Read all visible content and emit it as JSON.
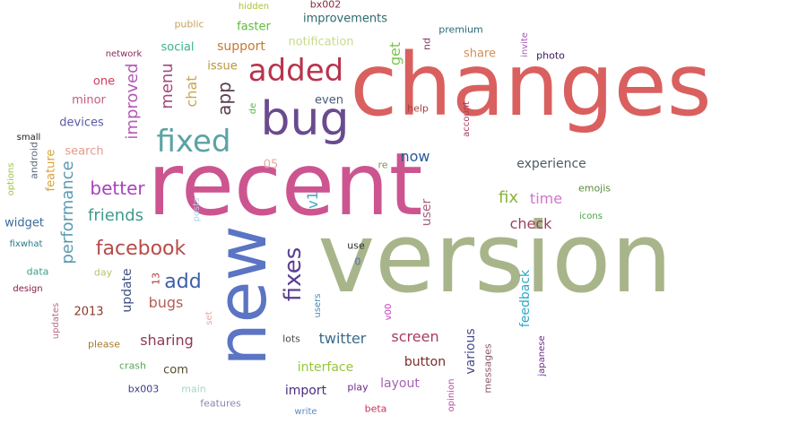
{
  "words": [
    {
      "text": "changes",
      "color": "#d9605f",
      "rotate": 0
    },
    {
      "text": "version",
      "color": "#a8b58a",
      "rotate": 0
    },
    {
      "text": "recent",
      "color": "#cc5590",
      "rotate": 0
    },
    {
      "text": "new",
      "color": "#5b74c3",
      "rotate": -90
    },
    {
      "text": "bug",
      "color": "#6a4b8e",
      "rotate": 0
    },
    {
      "text": "added",
      "color": "#b8334b",
      "rotate": 0
    },
    {
      "text": "fixed",
      "color": "#5aa3a4",
      "rotate": 0
    },
    {
      "text": "fixes",
      "color": "#5b3e91",
      "rotate": -90
    },
    {
      "text": "facebook",
      "color": "#b74a48",
      "rotate": 0
    },
    {
      "text": "add",
      "color": "#3e5ea8",
      "rotate": 0
    },
    {
      "text": "better",
      "color": "#a942c0",
      "rotate": 0
    },
    {
      "text": "friends",
      "color": "#3f9a8e",
      "rotate": 0
    },
    {
      "text": "improved",
      "color": "#b35ab3",
      "rotate": -90
    },
    {
      "text": "performance",
      "color": "#5b9ab0",
      "rotate": -90
    },
    {
      "text": "app",
      "color": "#5a3f4f",
      "rotate": -90
    },
    {
      "text": "menu",
      "color": "#a4497b",
      "rotate": -90
    },
    {
      "text": "chat",
      "color": "#c8a655",
      "rotate": -90
    },
    {
      "text": "now",
      "color": "#2a5a9a",
      "rotate": 0
    },
    {
      "text": "experience",
      "color": "#4c5c62",
      "rotate": 0
    },
    {
      "text": "fix",
      "color": "#88b53b",
      "rotate": 0
    },
    {
      "text": "time",
      "color": "#d472ce",
      "rotate": 0
    },
    {
      "text": "check",
      "color": "#9c3f5e",
      "rotate": 0
    },
    {
      "text": "bugs",
      "color": "#b45f57",
      "rotate": 0
    },
    {
      "text": "sharing",
      "color": "#8c3a55",
      "rotate": 0
    },
    {
      "text": "update",
      "color": "#3f4f84",
      "rotate": -90
    },
    {
      "text": "twitter",
      "color": "#3a6a8a",
      "rotate": 0
    },
    {
      "text": "screen",
      "color": "#a83a62",
      "rotate": 0
    },
    {
      "text": "interface",
      "color": "#98c43a",
      "rotate": 0
    },
    {
      "text": "button",
      "color": "#7a2a2a",
      "rotate": 0
    },
    {
      "text": "layout",
      "color": "#a562b5",
      "rotate": 0
    },
    {
      "text": "import",
      "color": "#4a2e7e",
      "rotate": 0
    },
    {
      "text": "feedback",
      "color": "#2fa8c8",
      "rotate": -90
    },
    {
      "text": "various",
      "color": "#4a4a8a",
      "rotate": -90
    },
    {
      "text": "user",
      "color": "#a86082",
      "rotate": -90
    },
    {
      "text": "improvements",
      "color": "#2e6a6a",
      "rotate": 0
    },
    {
      "text": "faster",
      "color": "#5fba3a",
      "rotate": 0
    },
    {
      "text": "support",
      "color": "#c9782e",
      "rotate": 0
    },
    {
      "text": "notification",
      "color": "#c7dc8a",
      "rotate": 0
    },
    {
      "text": "social",
      "color": "#3ab38a",
      "rotate": 0
    },
    {
      "text": "issue",
      "color": "#b8953a",
      "rotate": 0
    },
    {
      "text": "share",
      "color": "#d19058",
      "rotate": 0
    },
    {
      "text": "premium",
      "color": "#2a6a7a",
      "rotate": 0
    },
    {
      "text": "photo",
      "color": "#3a1a5a",
      "rotate": 0
    },
    {
      "text": "emojis",
      "color": "#5a8a3a",
      "rotate": 0
    },
    {
      "text": "icons",
      "color": "#4aa04a",
      "rotate": 0
    },
    {
      "text": "even",
      "color": "#4a5a7a",
      "rotate": 0
    },
    {
      "text": "one",
      "color": "#cf3e5a",
      "rotate": 0
    },
    {
      "text": "minor",
      "color": "#c45a82",
      "rotate": 0
    },
    {
      "text": "devices",
      "color": "#5a5aa8",
      "rotate": 0
    },
    {
      "text": "search",
      "color": "#e79a8a",
      "rotate": 0
    },
    {
      "text": "feature",
      "color": "#d7a33a",
      "rotate": -90
    },
    {
      "text": "android",
      "color": "#5a6a7a",
      "rotate": -90
    },
    {
      "text": "options",
      "color": "#9ac44a",
      "rotate": -90
    },
    {
      "text": "widget",
      "color": "#3a6a9a",
      "rotate": 0
    },
    {
      "text": "small",
      "color": "#1a1a1a",
      "rotate": 0
    },
    {
      "text": "fixwhat",
      "color": "#2a7a8a",
      "rotate": 0
    },
    {
      "text": "data",
      "color": "#3aa08a",
      "rotate": 0
    },
    {
      "text": "design",
      "color": "#8a1a4a",
      "rotate": 0
    },
    {
      "text": "updates",
      "color": "#b86a8a",
      "rotate": -90
    },
    {
      "text": "day",
      "color": "#b8c46a",
      "rotate": 0
    },
    {
      "text": "2013",
      "color": "#8a3a2a",
      "rotate": 0
    },
    {
      "text": "please",
      "color": "#a87a2a",
      "rotate": 0
    },
    {
      "text": "crash",
      "color": "#5aa85a",
      "rotate": 0
    },
    {
      "text": "com",
      "color": "#5a4a2a",
      "rotate": 0
    },
    {
      "text": "bx003",
      "color": "#3a3a8a",
      "rotate": 0
    },
    {
      "text": "main",
      "color": "#a8d4c8",
      "rotate": 0
    },
    {
      "text": "features",
      "color": "#8a8ab0",
      "rotate": 0
    },
    {
      "text": "write",
      "color": "#5a8ac8",
      "rotate": 0
    },
    {
      "text": "beta",
      "color": "#c8325a",
      "rotate": 0
    },
    {
      "text": "play",
      "color": "#6a2a8a",
      "rotate": 0
    },
    {
      "text": "lots",
      "color": "#4a4a4a",
      "rotate": 0
    },
    {
      "text": "users",
      "color": "#4a8ab8",
      "rotate": -90
    },
    {
      "text": "v00",
      "color": "#c83ab8",
      "rotate": -90
    },
    {
      "text": "opinion",
      "color": "#b84aa8",
      "rotate": -90
    },
    {
      "text": "messages",
      "color": "#8a5a6a",
      "rotate": -90
    },
    {
      "text": "japanese",
      "color": "#6a2a8a",
      "rotate": -90
    },
    {
      "text": "use",
      "color": "#2a2a2a",
      "rotate": 0
    },
    {
      "text": "0",
      "color": "#5a6ab8",
      "rotate": 0
    },
    {
      "text": "posts",
      "color": "#a8d4e8",
      "rotate": -90
    },
    {
      "text": "set",
      "color": "#e8a8a8",
      "rotate": -90
    },
    {
      "text": "13",
      "color": "#a83a3a",
      "rotate": -90
    },
    {
      "text": "05",
      "color": "#e8a8a8",
      "rotate": 0
    },
    {
      "text": "v1",
      "color": "#4aa8c8",
      "rotate": -90
    },
    {
      "text": "re",
      "color": "#8a8a5a",
      "rotate": 0
    },
    {
      "text": "de",
      "color": "#5ab83a",
      "rotate": -90
    },
    {
      "text": "get",
      "color": "#7ac44a",
      "rotate": -90
    },
    {
      "text": "nd",
      "color": "#8a3a6a",
      "rotate": -90
    },
    {
      "text": "account",
      "color": "#a83a5a",
      "rotate": -90
    },
    {
      "text": "help",
      "color": "#a83a3a",
      "rotate": 0
    },
    {
      "text": "invite",
      "color": "#a85ab8",
      "rotate": -90
    },
    {
      "text": "public",
      "color": "#c8a060",
      "rotate": 0
    },
    {
      "text": "hidden",
      "color": "#a8c43a",
      "rotate": 0
    },
    {
      "text": "bx002",
      "color": "#8a2a3a",
      "rotate": 0
    },
    {
      "text": "network",
      "color": "#8a2a5a",
      "rotate": 0
    }
  ]
}
